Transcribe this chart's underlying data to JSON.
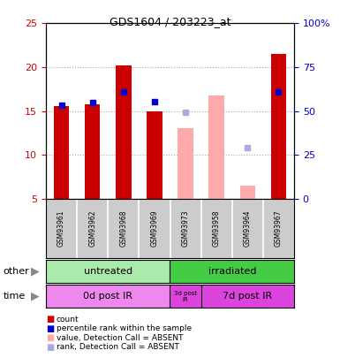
{
  "title": "GDS1604 / 203223_at",
  "samples": [
    "GSM93961",
    "GSM93962",
    "GSM93968",
    "GSM93969",
    "GSM93973",
    "GSM93958",
    "GSM93964",
    "GSM93967"
  ],
  "count_values": [
    15.6,
    15.8,
    20.2,
    15.0,
    null,
    null,
    null,
    21.5
  ],
  "count_color": "#cc0000",
  "rank_values": [
    15.7,
    16.0,
    17.2,
    16.1,
    null,
    null,
    null,
    17.2
  ],
  "rank_color": "#0000cc",
  "absent_value_values": [
    null,
    null,
    null,
    null,
    13.0,
    16.8,
    6.5,
    null
  ],
  "absent_value_color": "#ffaaaa",
  "absent_rank_values": [
    null,
    null,
    null,
    null,
    14.9,
    null,
    10.8,
    null
  ],
  "absent_rank_color": "#aaaadd",
  "ylim_left": [
    5,
    25
  ],
  "ylim_right": [
    0,
    100
  ],
  "left_ticks": [
    5,
    10,
    15,
    20,
    25
  ],
  "right_ticks": [
    0,
    25,
    50,
    75,
    100
  ],
  "right_tick_labels": [
    "0",
    "25",
    "50",
    "75",
    "100%"
  ],
  "left_tick_color": "#cc0000",
  "right_tick_color": "#0000cc",
  "grid_color": "#aaaaaa",
  "bg_color": "#ffffff",
  "plot_bg_color": "#ffffff",
  "sample_bg_color": "#cccccc",
  "untreated_label": "untreated",
  "irradiated_label": "irradiated",
  "treatment_bg_untreated": "#aaeaaa",
  "treatment_bg_irradiated": "#44cc44",
  "time_label_0": "0d post IR",
  "time_label_3": "3d post\nIR",
  "time_label_7": "7d post IR",
  "time_bg_light": "#ee88ee",
  "time_bg_dark": "#dd44dd",
  "other_label": "other",
  "time_label": "time",
  "legend_items": [
    {
      "color": "#cc0000",
      "label": "count"
    },
    {
      "color": "#0000cc",
      "label": "percentile rank within the sample"
    },
    {
      "color": "#ffaaaa",
      "label": "value, Detection Call = ABSENT"
    },
    {
      "color": "#aaaadd",
      "label": "rank, Detection Call = ABSENT"
    }
  ],
  "bar_width": 0.5
}
